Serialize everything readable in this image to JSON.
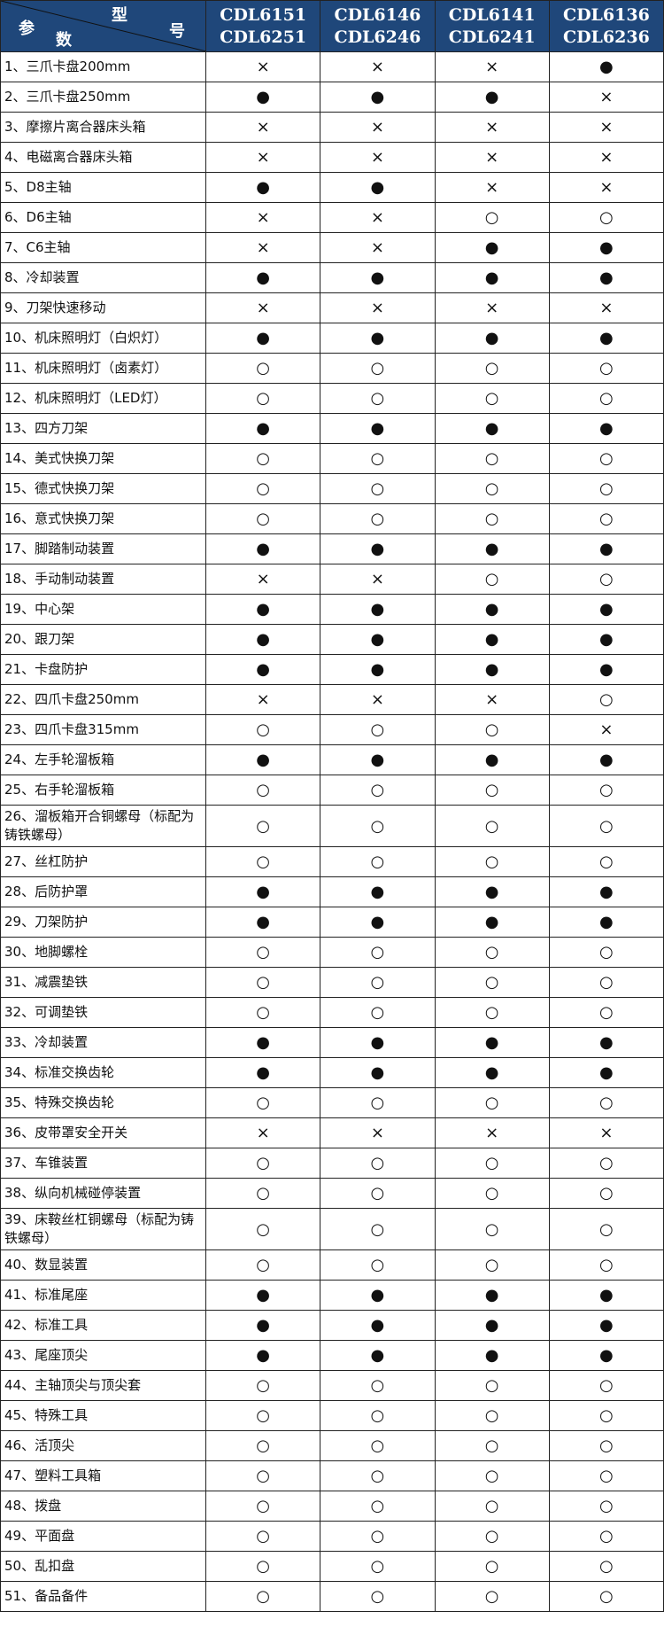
{
  "header": {
    "corner": {
      "xing": "型",
      "hao": "号",
      "can": "参",
      "shu": "数"
    },
    "models": [
      [
        "CDL6151",
        "CDL6251"
      ],
      [
        "CDL6146",
        "CDL6246"
      ],
      [
        "CDL6141",
        "CDL6241"
      ],
      [
        "CDL6136",
        "CDL6236"
      ]
    ]
  },
  "colors": {
    "header_bg": "#1f477a",
    "header_text": "#ffffff"
  },
  "rows": [
    {
      "name": "1、三爪卡盘200mm",
      "marks": [
        "×",
        "×",
        "×",
        "●"
      ]
    },
    {
      "name": "2、三爪卡盘250mm",
      "marks": [
        "●",
        "●",
        "●",
        "×"
      ]
    },
    {
      "name": "3、摩擦片离合器床头箱",
      "marks": [
        "×",
        "×",
        "×",
        "×"
      ]
    },
    {
      "name": "4、电磁离合器床头箱",
      "marks": [
        "×",
        "×",
        "×",
        "×"
      ]
    },
    {
      "name": "5、D8主轴",
      "marks": [
        "●",
        "●",
        "×",
        "×"
      ]
    },
    {
      "name": "6、D6主轴",
      "marks": [
        "×",
        "×",
        "○",
        "○"
      ]
    },
    {
      "name": "7、C6主轴",
      "marks": [
        "×",
        "×",
        "●",
        "●"
      ]
    },
    {
      "name": "8、冷却装置",
      "marks": [
        "●",
        "●",
        "●",
        "●"
      ]
    },
    {
      "name": "9、刀架快速移动",
      "marks": [
        "×",
        "×",
        "×",
        "×"
      ]
    },
    {
      "name": "10、机床照明灯（白炽灯）",
      "marks": [
        "●",
        "●",
        "●",
        "●"
      ]
    },
    {
      "name": "11、机床照明灯（卤素灯）",
      "marks": [
        "○",
        "○",
        "○",
        "○"
      ]
    },
    {
      "name": "12、机床照明灯（LED灯）",
      "marks": [
        "○",
        "○",
        "○",
        "○"
      ]
    },
    {
      "name": "13、四方刀架",
      "marks": [
        "●",
        "●",
        "●",
        "●"
      ]
    },
    {
      "name": "14、美式快换刀架",
      "marks": [
        "○",
        "○",
        "○",
        "○"
      ]
    },
    {
      "name": "15、德式快换刀架",
      "marks": [
        "○",
        "○",
        "○",
        "○"
      ]
    },
    {
      "name": "16、意式快换刀架",
      "marks": [
        "○",
        "○",
        "○",
        "○"
      ]
    },
    {
      "name": "17、脚踏制动装置",
      "marks": [
        "●",
        "●",
        "●",
        "●"
      ]
    },
    {
      "name": "18、手动制动装置",
      "marks": [
        "×",
        "×",
        "○",
        "○"
      ]
    },
    {
      "name": "19、中心架",
      "marks": [
        "●",
        "●",
        "●",
        "●"
      ]
    },
    {
      "name": "20、跟刀架",
      "marks": [
        "●",
        "●",
        "●",
        "●"
      ]
    },
    {
      "name": "21、卡盘防护",
      "marks": [
        "●",
        "●",
        "●",
        "●"
      ]
    },
    {
      "name": "22、四爪卡盘250mm",
      "marks": [
        "×",
        "×",
        "×",
        "○"
      ]
    },
    {
      "name": "23、四爪卡盘315mm",
      "marks": [
        "○",
        "○",
        "○",
        "×"
      ]
    },
    {
      "name": "24、左手轮溜板箱",
      "marks": [
        "●",
        "●",
        "●",
        "●"
      ]
    },
    {
      "name": "25、右手轮溜板箱",
      "marks": [
        "○",
        "○",
        "○",
        "○"
      ]
    },
    {
      "name": "26、溜板箱开合铜螺母（标配为铸铁螺母）",
      "marks": [
        "○",
        "○",
        "○",
        "○"
      ],
      "tall": true
    },
    {
      "name": "27、丝杠防护",
      "marks": [
        "○",
        "○",
        "○",
        "○"
      ]
    },
    {
      "name": "28、后防护罩",
      "marks": [
        "●",
        "●",
        "●",
        "●"
      ]
    },
    {
      "name": "29、刀架防护",
      "marks": [
        "●",
        "●",
        "●",
        "●"
      ]
    },
    {
      "name": "30、地脚螺栓",
      "marks": [
        "○",
        "○",
        "○",
        "○"
      ]
    },
    {
      "name": "31、减震垫铁",
      "marks": [
        "○",
        "○",
        "○",
        "○"
      ]
    },
    {
      "name": "32、可调垫铁",
      "marks": [
        "○",
        "○",
        "○",
        "○"
      ]
    },
    {
      "name": "33、冷却装置",
      "marks": [
        "●",
        "●",
        "●",
        "●"
      ]
    },
    {
      "name": "34、标准交换齿轮",
      "marks": [
        "●",
        "●",
        "●",
        "●"
      ]
    },
    {
      "name": "35、特殊交换齿轮",
      "marks": [
        "○",
        "○",
        "○",
        "○"
      ]
    },
    {
      "name": "36、皮带罩安全开关",
      "marks": [
        "×",
        "×",
        "×",
        "×"
      ]
    },
    {
      "name": "37、车锥装置",
      "marks": [
        "○",
        "○",
        "○",
        "○"
      ]
    },
    {
      "name": "38、纵向机械碰停装置",
      "marks": [
        "○",
        "○",
        "○",
        "○"
      ]
    },
    {
      "name": "39、床鞍丝杠铜螺母（标配为铸铁螺母）",
      "marks": [
        "○",
        "○",
        "○",
        "○"
      ],
      "tall": true
    },
    {
      "name": "40、数显装置",
      "marks": [
        "○",
        "○",
        "○",
        "○"
      ]
    },
    {
      "name": "41、标准尾座",
      "marks": [
        "●",
        "●",
        "●",
        "●"
      ]
    },
    {
      "name": "42、标准工具",
      "marks": [
        "●",
        "●",
        "●",
        "●"
      ]
    },
    {
      "name": "43、尾座顶尖",
      "marks": [
        "●",
        "●",
        "●",
        "●"
      ]
    },
    {
      "name": "44、主轴顶尖与顶尖套",
      "marks": [
        "○",
        "○",
        "○",
        "○"
      ]
    },
    {
      "name": "45、特殊工具",
      "marks": [
        "○",
        "○",
        "○",
        "○"
      ]
    },
    {
      "name": "46、活顶尖",
      "marks": [
        "○",
        "○",
        "○",
        "○"
      ]
    },
    {
      "name": "47、塑料工具箱",
      "marks": [
        "○",
        "○",
        "○",
        "○"
      ]
    },
    {
      "name": "48、拨盘",
      "marks": [
        "○",
        "○",
        "○",
        "○"
      ]
    },
    {
      "name": "49、平面盘",
      "marks": [
        "○",
        "○",
        "○",
        "○"
      ]
    },
    {
      "name": "50、乱扣盘",
      "marks": [
        "○",
        "○",
        "○",
        "○"
      ]
    },
    {
      "name": "51、备品备件",
      "marks": [
        "○",
        "○",
        "○",
        "○"
      ]
    }
  ]
}
